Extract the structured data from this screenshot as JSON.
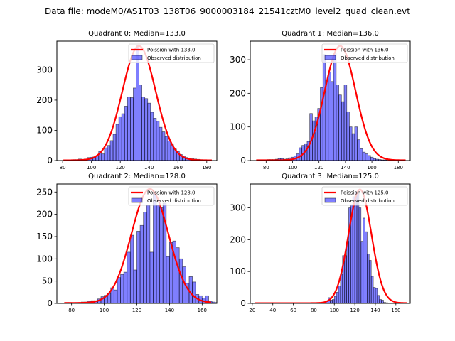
{
  "figure": {
    "suptitle": "Data file: modeM0/AS1T03_138T06_9000003184_21541cztM0_level2_quad_clean.evt"
  },
  "chart_data": [
    {
      "type": "bar",
      "title": "Quadrant 0: Median=133.0",
      "xlabel": "",
      "ylabel": "",
      "xlim": [
        76,
        187
      ],
      "ylim": [
        0,
        395
      ],
      "xticks": [
        80,
        100,
        120,
        140,
        160,
        180
      ],
      "yticks": [
        0,
        100,
        200,
        300
      ],
      "legend_position": "top-right",
      "legend": [
        "Poission with 133.0",
        "Observed distribution"
      ],
      "bar_color": "#0000ff",
      "bar_alpha": 0.5,
      "line_color": "#ff0000",
      "bin_start": 81,
      "bin_width": 2,
      "values": [
        2,
        2,
        2,
        3,
        3,
        5,
        4,
        5,
        10,
        11,
        12,
        15,
        30,
        22,
        42,
        50,
        66,
        87,
        120,
        145,
        155,
        180,
        210,
        208,
        240,
        380,
        250,
        210,
        205,
        190,
        160,
        140,
        130,
        110,
        95,
        80,
        65,
        52,
        38,
        30,
        20,
        15,
        10,
        8,
        6,
        5,
        4,
        3,
        2,
        2,
        1
      ],
      "poisson_mean": 133.0,
      "poisson_peak": 378
    },
    {
      "type": "bar",
      "title": "Quadrant 1: Median=136.0",
      "xlabel": "",
      "ylabel": "",
      "xlim": [
        68,
        189
      ],
      "ylim": [
        0,
        355
      ],
      "xticks": [
        80,
        100,
        120,
        140,
        160,
        180
      ],
      "yticks": [
        0,
        100,
        200,
        300
      ],
      "legend_position": "top-right",
      "legend": [
        "Poission with 136.0",
        "Observed distribution"
      ],
      "bar_color": "#0000ff",
      "bar_alpha": 0.5,
      "line_color": "#ff0000",
      "bin_start": 73,
      "bin_width": 2,
      "values": [
        1,
        1,
        2,
        2,
        3,
        3,
        3,
        4,
        6,
        6,
        4,
        5,
        8,
        10,
        14,
        20,
        38,
        45,
        50,
        57,
        140,
        118,
        130,
        155,
        217,
        315,
        240,
        263,
        235,
        320,
        225,
        195,
        175,
        225,
        145,
        100,
        80,
        100,
        62,
        35,
        25,
        20,
        15,
        10,
        6,
        4,
        3,
        2,
        2,
        1,
        1,
        1,
        1,
        1,
        1
      ],
      "poisson_mean": 136.0,
      "poisson_peak": 340
    },
    {
      "type": "bar",
      "title": "Quadrant 2: Median=128.0",
      "xlabel": "",
      "ylabel": "",
      "xlim": [
        71,
        169
      ],
      "ylim": [
        0,
        268
      ],
      "xticks": [
        80,
        100,
        120,
        140,
        160
      ],
      "yticks": [
        0,
        50,
        100,
        150,
        200,
        250
      ],
      "legend_position": "top-right",
      "legend": [
        "Poission with 128.0",
        "Observed distribution"
      ],
      "bar_color": "#0000ff",
      "bar_alpha": 0.5,
      "line_color": "#ff0000",
      "bin_start": 76,
      "bin_width": 2,
      "values": [
        2,
        2,
        1,
        2,
        2,
        3,
        3,
        5,
        6,
        6,
        10,
        15,
        18,
        22,
        35,
        30,
        58,
        65,
        70,
        115,
        153,
        75,
        162,
        175,
        205,
        220,
        115,
        250,
        220,
        215,
        225,
        105,
        137,
        140,
        125,
        100,
        82,
        45,
        60,
        48,
        20,
        17,
        12,
        17,
        5,
        3,
        2,
        1
      ],
      "poisson_mean": 128.0,
      "poisson_peak": 256
    },
    {
      "type": "bar",
      "title": "Quadrant 3: Median=125.0",
      "xlabel": "",
      "ylabel": "",
      "xlim": [
        18,
        174
      ],
      "ylim": [
        0,
        375
      ],
      "xticks": [
        20,
        40,
        60,
        80,
        100,
        120,
        140,
        160
      ],
      "yticks": [
        0,
        100,
        200,
        300
      ],
      "legend_position": "top-right",
      "legend": [
        "Poission with 125.0",
        "Observed distribution"
      ],
      "bar_color": "#0000ff",
      "bar_alpha": 0.5,
      "line_color": "#ff0000",
      "bin_start": 84,
      "bin_width": 2,
      "values": [
        1,
        1,
        2,
        3,
        6,
        18,
        10,
        12,
        22,
        35,
        55,
        92,
        150,
        150,
        195,
        300,
        310,
        335,
        350,
        345,
        300,
        195,
        268,
        225,
        155,
        135,
        85,
        50,
        47,
        25,
        12,
        10,
        3,
        2
      ],
      "poisson_mean": 125.0,
      "poisson_peak": 357
    }
  ]
}
